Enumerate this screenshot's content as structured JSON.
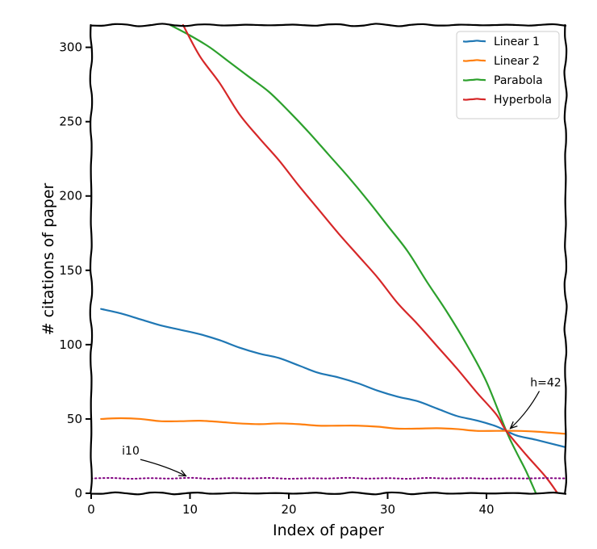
{
  "chart_data": {
    "type": "line",
    "xlabel": "Index of paper",
    "ylabel": "# citations of paper",
    "xlim": [
      0,
      48
    ],
    "ylim": [
      0,
      315
    ],
    "xticks": [
      0,
      10,
      20,
      30,
      40
    ],
    "yticks": [
      0,
      50,
      100,
      150,
      200,
      250,
      300
    ],
    "grid": false,
    "legend": "top-right",
    "series": [
      {
        "name": "Linear 1",
        "color": "#1f77b4",
        "style": "solid",
        "x": [
          1,
          3,
          5,
          7,
          9,
          11,
          13,
          15,
          17,
          19,
          21,
          23,
          25,
          27,
          29,
          31,
          33,
          35,
          37,
          39,
          41,
          43,
          45,
          48
        ],
        "y": [
          124,
          121,
          117,
          113,
          110,
          107,
          103,
          98,
          94,
          91,
          86,
          81,
          78,
          74,
          69,
          65,
          62,
          57,
          52,
          49,
          45,
          39,
          36,
          31
        ]
      },
      {
        "name": "Linear 2",
        "color": "#ff7f0e",
        "style": "solid",
        "x": [
          1,
          3,
          5,
          7,
          9,
          11,
          13,
          15,
          17,
          19,
          21,
          23,
          25,
          27,
          29,
          31,
          33,
          35,
          37,
          39,
          41,
          43,
          45,
          48
        ],
        "y": [
          50,
          50.5,
          50,
          48.5,
          48.5,
          48.8,
          48,
          47,
          46.5,
          47,
          46.5,
          45.5,
          45.5,
          45.5,
          44.8,
          43.5,
          43.5,
          43.8,
          43.2,
          42,
          42,
          42,
          41.5,
          40
        ]
      },
      {
        "name": "Parabola",
        "color": "#2ca02c",
        "style": "solid",
        "x": [
          8,
          10,
          12,
          14,
          16,
          18,
          20,
          22,
          24,
          26,
          28,
          30,
          32,
          34,
          36,
          38,
          40,
          42,
          43,
          44,
          45
        ],
        "y": [
          315,
          308,
          300,
          290,
          280,
          270,
          257,
          243,
          228,
          213,
          197,
          180,
          163,
          142,
          122,
          100,
          75,
          42,
          28,
          15,
          0
        ]
      },
      {
        "name": "Hyperbola",
        "color": "#d62728",
        "style": "solid",
        "x": [
          9.3,
          11,
          13,
          15,
          17,
          19,
          21,
          23,
          25,
          27,
          29,
          31,
          33,
          35,
          37,
          39,
          41,
          42,
          44,
          46,
          47.2
        ],
        "y": [
          315,
          294,
          276,
          255,
          239,
          224,
          207,
          191,
          175,
          160,
          145,
          128,
          114,
          99,
          84,
          68,
          53,
          42,
          26,
          11,
          0
        ]
      },
      {
        "name": "",
        "color": "#800080",
        "style": "dotted",
        "x": [
          0,
          2,
          4,
          6,
          8,
          10,
          12,
          14,
          16,
          18,
          20,
          22,
          24,
          26,
          28,
          30,
          32,
          34,
          36,
          38,
          40,
          42,
          44,
          46,
          48
        ],
        "y": [
          10,
          10.3,
          9.8,
          10.2,
          9.9,
          10.4,
          9.8,
          10.2,
          10,
          10.3,
          9.8,
          10.1,
          10,
          10.4,
          9.9,
          10.2,
          9.8,
          10.3,
          10,
          10.2,
          9.9,
          10.1,
          10,
          10.2,
          10
        ]
      }
    ],
    "annotations": [
      {
        "text": "h=42",
        "point": [
          42,
          42
        ],
        "text_at": [
          46,
          72
        ]
      },
      {
        "text": "i10",
        "point": [
          10,
          10
        ],
        "text_at": [
          4,
          26
        ]
      }
    ]
  }
}
